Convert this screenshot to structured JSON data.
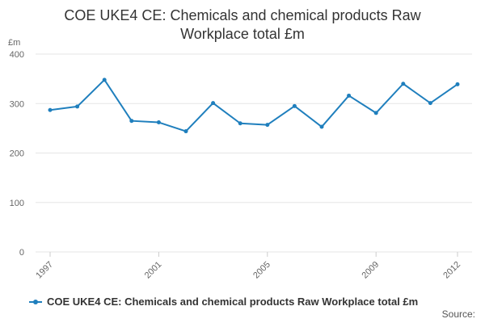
{
  "colors": {
    "series": "#1f7fbd",
    "grid": "#e6e6e6",
    "axis_text": "#666666"
  },
  "chart_data": {
    "type": "line",
    "title": "COE UKE4 CE: Chemicals and chemical products Raw Workplace total £m",
    "title_lines": [
      "COE UKE4 CE: Chemicals and chemical products Raw",
      "Workplace total £m"
    ],
    "ylabel": "£m",
    "xlabel": "",
    "ylim": [
      0,
      400
    ],
    "yticks": [
      0,
      100,
      200,
      300,
      400
    ],
    "xlim": [
      1997,
      2012
    ],
    "xticks": [
      "1997",
      "2001",
      "2005",
      "2009",
      "2012"
    ],
    "grid": true,
    "legend_position": "bottom",
    "x": [
      1997,
      1998,
      1999,
      2000,
      2001,
      2002,
      2003,
      2004,
      2005,
      2006,
      2007,
      2008,
      2009,
      2010,
      2011,
      2012
    ],
    "series": [
      {
        "name": "COE UKE4 CE: Chemicals and chemical products Raw Workplace total £m",
        "values": [
          287,
          294,
          348,
          265,
          262,
          244,
          301,
          260,
          257,
          295,
          253,
          316,
          281,
          340,
          301,
          339
        ]
      }
    ]
  },
  "legend": {
    "label": "COE UKE4 CE: Chemicals and chemical products Raw Workplace total £m"
  },
  "source": {
    "label": "Source:"
  }
}
